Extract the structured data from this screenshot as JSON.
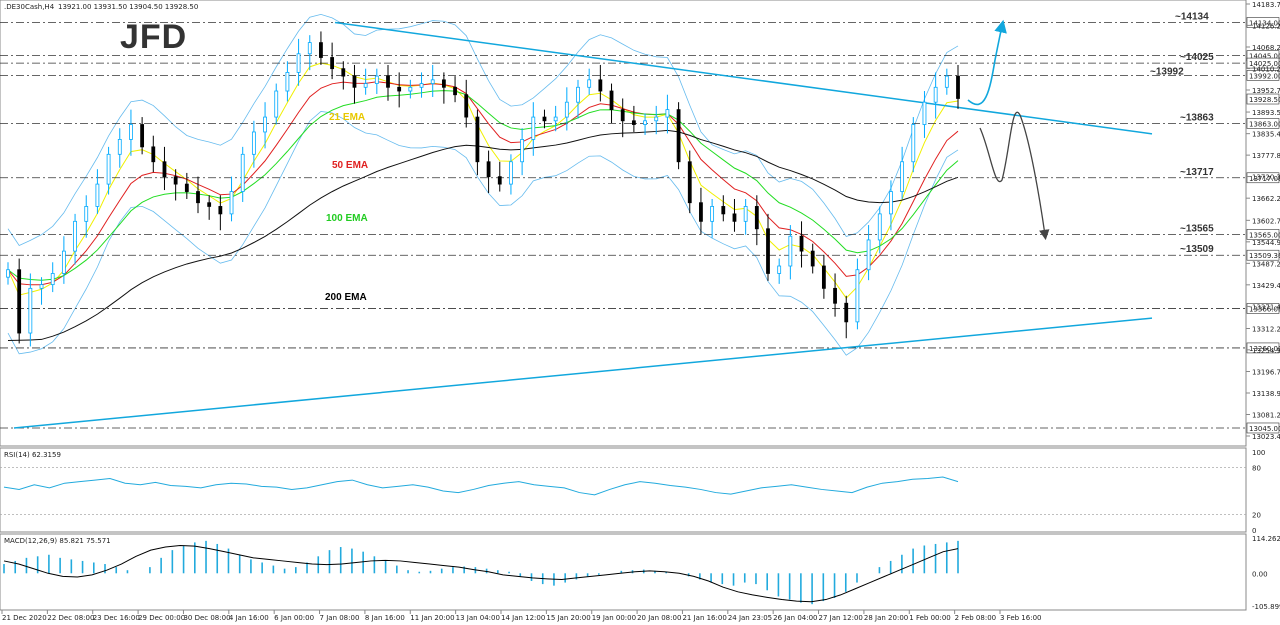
{
  "header": {
    "symbol": ".DE30Cash,H4",
    "ohlc": "13921.00 13931.50 13904.50 13928.50"
  },
  "logo": {
    "text": "JFD"
  },
  "colors": {
    "bull": "#00aaff",
    "bear": "#000000",
    "bb": "#66bbee",
    "trend": "#11a7dd",
    "ema21": "#f0f000",
    "ema50": "#e02020",
    "ema100": "#22dd22",
    "ema200": "#111111",
    "rsi": "#22aadd",
    "macd_hist": "#22aadd",
    "macd_sig": "#000000"
  },
  "chart_data": {
    "type": "candlestick",
    "price_axis_ticks": [
      "14183.70",
      "14126.20",
      "14068.20",
      "14010.25",
      "13952.70",
      "13893.50",
      "13835.45",
      "13777.80",
      "13720.30",
      "13662.20",
      "13602.70",
      "13544.90",
      "13487.20",
      "13429.45",
      "13371.40",
      "13312.20",
      "13254.90",
      "13196.70",
      "13138.95",
      "13081.20",
      "13023.45"
    ],
    "y_range": [
      13023.45,
      14183.7
    ],
    "levels": [
      {
        "value": 14134,
        "label": "~14134",
        "box": "14134.00",
        "style": "dashdot",
        "label_color": "#11a7dd"
      },
      {
        "value": 14045,
        "label": "",
        "box": "14045.00",
        "style": "dashdot"
      },
      {
        "value": 14025,
        "label": "~14025",
        "box": "14025.00",
        "style": "dashdot",
        "label_color": "#11a7dd"
      },
      {
        "value": 13992,
        "label": "~13992",
        "box": "13992.00",
        "style": "dashdot",
        "label_color": "#11a7dd"
      },
      {
        "value": 13863,
        "label": "~13863",
        "box": "13863.00",
        "style": "dashdot"
      },
      {
        "value": 13717,
        "label": "~13717",
        "box": "13717.00",
        "style": "dashdot"
      },
      {
        "value": 13565,
        "label": "~13565",
        "box": "13565.00",
        "style": "dashdot"
      },
      {
        "value": 13509,
        "label": "~13509",
        "box": "13509.36",
        "style": "dashdot"
      },
      {
        "value": 13366,
        "label": "",
        "box": "13366.00",
        "style": "dashdot"
      },
      {
        "value": 13260,
        "label": "",
        "box": "13260.00",
        "style": "dashdot"
      },
      {
        "value": 13045,
        "label": "",
        "box": "13045.00",
        "style": "dashdot"
      }
    ],
    "current_price": {
      "value": 13928.5,
      "box": "13928.50"
    },
    "ema_labels": [
      {
        "name": "21 EMA",
        "color": "#e8c800"
      },
      {
        "name": "50 EMA",
        "color": "#e02020"
      },
      {
        "name": "100 EMA",
        "color": "#22cc22"
      },
      {
        "name": "200 EMA",
        "color": "#000000"
      }
    ],
    "x_labels": [
      "21 Dec 2020",
      "22 Dec 08:00",
      "23 Dec 16:00",
      "29 Dec 00:00",
      "30 Dec 08:00",
      "4 Jan 16:00",
      "6 Jan 00:00",
      "7 Jan 08:00",
      "8 Jan 16:00",
      "11 Jan 20:00",
      "13 Jan 04:00",
      "14 Jan 12:00",
      "15 Jan 20:00",
      "19 Jan 00:00",
      "20 Jan 08:00",
      "21 Jan 16:00",
      "24 Jan 23:05",
      "26 Jan 04:00",
      "27 Jan 12:00",
      "28 Jan 20:00",
      "1 Feb 00:00",
      "2 Feb 08:00",
      "3 Feb 16:00"
    ],
    "close_path": [
      13470,
      13300,
      13420,
      13430,
      13460,
      13520,
      13600,
      13640,
      13700,
      13780,
      13820,
      13860,
      13800,
      13760,
      13720,
      13700,
      13680,
      13650,
      13640,
      13620,
      13680,
      13780,
      13840,
      13880,
      13950,
      14000,
      14050,
      14080,
      14040,
      14010,
      13990,
      13960,
      13970,
      13990,
      13960,
      13950,
      13960,
      13970,
      13980,
      13960,
      13940,
      13880,
      13760,
      13720,
      13700,
      13760,
      13820,
      13880,
      13870,
      13880,
      13920,
      13960,
      13980,
      13950,
      13900,
      13870,
      13860,
      13870,
      13880,
      13900,
      13760,
      13650,
      13600,
      13640,
      13620,
      13600,
      13640,
      13580,
      13460,
      13480,
      13560,
      13520,
      13480,
      13420,
      13380,
      13330,
      13470,
      13550,
      13620,
      13680,
      13760,
      13860,
      13920,
      13960,
      13990,
      13930
    ],
    "rsi": {
      "label": "RSI(14) 62.3159",
      "levels": [
        100,
        80,
        20,
        0
      ],
      "values": [
        55,
        52,
        58,
        54,
        60,
        62,
        64,
        66,
        60,
        58,
        61,
        57,
        56,
        54,
        58,
        60,
        59,
        56,
        55,
        52,
        54,
        58,
        62,
        64,
        58,
        54,
        56,
        58,
        55,
        50,
        48,
        52,
        57,
        60,
        62,
        58,
        56,
        54,
        48,
        45,
        52,
        58,
        62,
        60,
        57,
        55,
        52,
        48,
        46,
        50,
        54,
        56,
        58,
        55,
        52,
        50,
        48,
        55,
        60,
        62,
        65,
        66,
        68,
        62
      ]
    },
    "macd": {
      "label": "MACD(12,26,9) 85.821 75.571",
      "axis": [
        "114.262",
        "0.00",
        "-105.899"
      ],
      "range": [
        -105.899,
        114.262
      ],
      "hist": [
        30,
        40,
        50,
        55,
        60,
        50,
        45,
        40,
        35,
        30,
        20,
        10,
        0,
        20,
        50,
        75,
        90,
        100,
        105,
        95,
        80,
        60,
        45,
        35,
        25,
        15,
        20,
        35,
        55,
        75,
        85,
        80,
        70,
        55,
        40,
        25,
        10,
        5,
        8,
        15,
        20,
        22,
        20,
        15,
        10,
        5,
        -10,
        -25,
        -35,
        -40,
        -30,
        -20,
        -10,
        -5,
        0,
        8,
        10,
        12,
        8,
        5,
        0,
        -10,
        -20,
        -30,
        -35,
        -40,
        -30,
        -35,
        -55,
        -75,
        -85,
        -95,
        -100,
        -90,
        -80,
        -60,
        -30,
        0,
        20,
        40,
        60,
        80,
        90,
        95,
        100,
        105
      ],
      "signal": [
        40,
        30,
        15,
        0,
        -10,
        -12,
        -5,
        10,
        30,
        55,
        75,
        85,
        90,
        88,
        80,
        70,
        60,
        50,
        45,
        40,
        35,
        30,
        28,
        30,
        35,
        40,
        42,
        40,
        35,
        30,
        25,
        20,
        12,
        5,
        -5,
        -10,
        -15,
        -18,
        -20,
        -15,
        -10,
        -5,
        0,
        5,
        8,
        5,
        0,
        -10,
        -25,
        -45,
        -60,
        -70,
        -78,
        -85,
        -90,
        -92,
        -85,
        -70,
        -50,
        -30,
        -10,
        10,
        30,
        50,
        70,
        80
      ]
    }
  }
}
